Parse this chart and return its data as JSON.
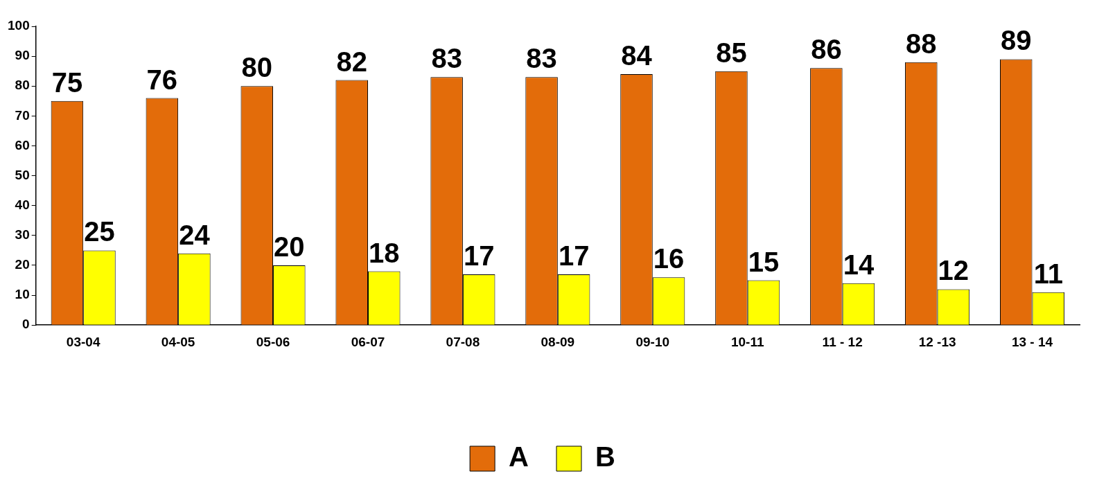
{
  "chart_data": {
    "type": "bar",
    "categories": [
      "03-04",
      "04-05",
      "05-06",
      "06-07",
      "07-08",
      "08-09",
      "09-10",
      "10-11",
      "11 - 12",
      "12 -13",
      "13 - 14"
    ],
    "series": [
      {
        "name": "A",
        "color": "#e36c0a",
        "values": [
          75,
          76,
          80,
          82,
          83,
          83,
          84,
          85,
          86,
          88,
          89
        ]
      },
      {
        "name": "B",
        "color": "#ffff00",
        "values": [
          25,
          24,
          20,
          18,
          17,
          17,
          16,
          15,
          14,
          12,
          11
        ]
      }
    ],
    "ylim": [
      0,
      100
    ],
    "yticks": [
      0,
      10,
      20,
      30,
      40,
      50,
      60,
      70,
      80,
      90,
      100
    ],
    "grid": false,
    "legend": "bottom",
    "data_labels": true
  }
}
